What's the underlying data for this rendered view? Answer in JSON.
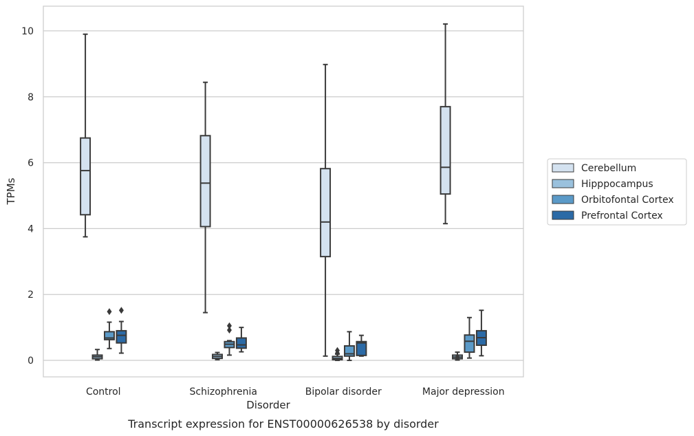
{
  "chart_data": {
    "type": "box",
    "title": "Transcript expression for ENST00000626538 by disorder",
    "xlabel": "Disorder",
    "ylabel": "TPMs",
    "categories": [
      "Control",
      "Schizophrenia",
      "Bipolar disorder",
      "Major depression"
    ],
    "ylim": [
      -0.5,
      10.75
    ],
    "yticks": [
      0,
      2,
      4,
      6,
      8,
      10
    ],
    "grid": true,
    "legend_position": "right",
    "series": [
      {
        "name": "Cerebellum",
        "color": "#d4e2f0",
        "boxes": [
          {
            "whislo": 3.75,
            "q1": 4.42,
            "med": 5.76,
            "q3": 6.75,
            "whishi": 9.9,
            "fliers": []
          },
          {
            "whislo": 1.45,
            "q1": 4.06,
            "med": 5.38,
            "q3": 6.82,
            "whishi": 8.44,
            "fliers": []
          },
          {
            "whislo": 0.13,
            "q1": 3.15,
            "med": 4.2,
            "q3": 5.82,
            "whishi": 8.98,
            "fliers": []
          },
          {
            "whislo": 4.15,
            "q1": 5.05,
            "med": 5.86,
            "q3": 7.7,
            "whishi": 10.21,
            "fliers": []
          }
        ]
      },
      {
        "name": "Hipppocampus",
        "color": "#9ac1dd",
        "boxes": [
          {
            "whislo": 0.01,
            "q1": 0.05,
            "med": 0.11,
            "q3": 0.16,
            "whishi": 0.33,
            "fliers": []
          },
          {
            "whislo": 0.02,
            "q1": 0.06,
            "med": 0.12,
            "q3": 0.18,
            "whishi": 0.24,
            "fliers": []
          },
          {
            "whislo": 0.0,
            "q1": 0.02,
            "med": 0.06,
            "q3": 0.12,
            "whishi": 0.19,
            "fliers": [
              0.22,
              0.3
            ]
          },
          {
            "whislo": 0.01,
            "q1": 0.05,
            "med": 0.1,
            "q3": 0.16,
            "whishi": 0.25,
            "fliers": [
              0.1
            ]
          }
        ]
      },
      {
        "name": "Orbitofontal Cortex",
        "color": "#5b9ac8",
        "boxes": [
          {
            "whislo": 0.36,
            "q1": 0.63,
            "med": 0.68,
            "q3": 0.87,
            "whishi": 1.16,
            "fliers": [
              1.48
            ]
          },
          {
            "whislo": 0.16,
            "q1": 0.39,
            "med": 0.49,
            "q3": 0.57,
            "whishi": 0.6,
            "fliers": [
              0.92,
              1.05
            ]
          },
          {
            "whislo": 0.0,
            "q1": 0.13,
            "med": 0.2,
            "q3": 0.44,
            "whishi": 0.87,
            "fliers": []
          },
          {
            "whislo": 0.07,
            "q1": 0.25,
            "med": 0.58,
            "q3": 0.77,
            "whishi": 1.3,
            "fliers": []
          }
        ]
      },
      {
        "name": "Prefrontal Cortex",
        "color": "#2b6aa6",
        "boxes": [
          {
            "whislo": 0.22,
            "q1": 0.53,
            "med": 0.76,
            "q3": 0.9,
            "whishi": 1.18,
            "fliers": [
              1.52
            ]
          },
          {
            "whislo": 0.26,
            "q1": 0.37,
            "med": 0.47,
            "q3": 0.68,
            "whishi": 1.0,
            "fliers": []
          },
          {
            "whislo": 0.13,
            "q1": 0.15,
            "med": 0.53,
            "q3": 0.57,
            "whishi": 0.76,
            "fliers": []
          },
          {
            "whislo": 0.14,
            "q1": 0.46,
            "med": 0.69,
            "q3": 0.9,
            "whishi": 1.52,
            "fliers": []
          }
        ]
      }
    ]
  },
  "colors": {
    "axis_border": "#cccccc",
    "grid": "#cccccc",
    "box_edge": "#3a3a3a",
    "text": "#262626"
  }
}
